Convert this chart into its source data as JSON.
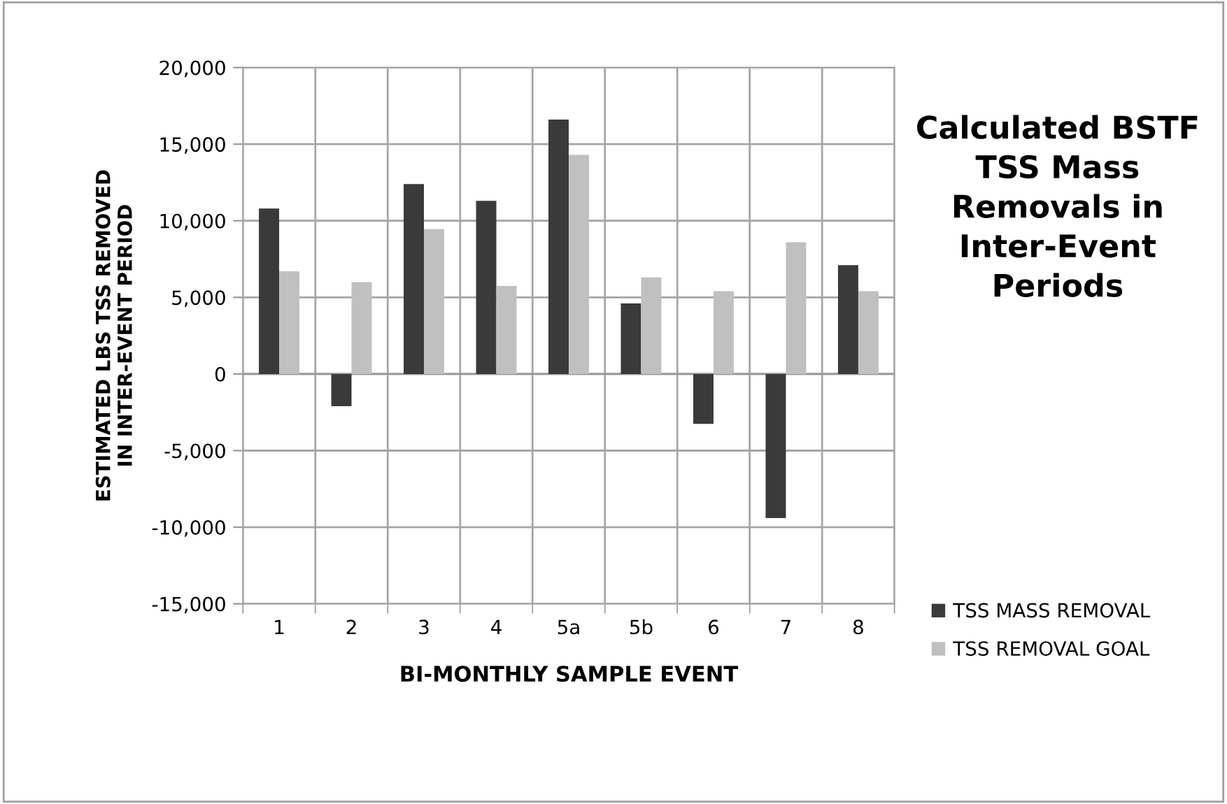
{
  "chart_data": {
    "type": "bar",
    "title": "Calculated BSTF TSS Mass Removals in Inter-Event Periods",
    "xlabel": "BI-MONTHLY SAMPLE EVENT",
    "ylabel": "ESTIMATED LBS TSS REMOVED\nIN INTER-EVENT PERIOD",
    "categories": [
      "1",
      "2",
      "3",
      "4",
      "5a",
      "5b",
      "6",
      "7",
      "8"
    ],
    "series": [
      {
        "name": "TSS MASS REMOVAL",
        "color": "#3a3a3a",
        "values": [
          10800,
          -2100,
          12400,
          11300,
          16600,
          4600,
          -3250,
          -9400,
          7100
        ]
      },
      {
        "name": "TSS REMOVAL GOAL",
        "color": "#c0c0c0",
        "values": [
          6700,
          6000,
          9450,
          5750,
          14300,
          6300,
          5400,
          8600,
          5400
        ]
      }
    ],
    "ylim": [
      -15000,
      20000
    ],
    "yticks": [
      {
        "value": -15000,
        "label": "-15,000"
      },
      {
        "value": -10000,
        "label": "-10,000"
      },
      {
        "value": -5000,
        "label": "-5,000"
      },
      0,
      {
        "value": 5000,
        "label": "5,000"
      },
      {
        "value": 10000,
        "label": "10,000"
      },
      {
        "value": 15000,
        "label": "15,000"
      },
      {
        "value": 20000,
        "label": "20,000"
      }
    ],
    "grid": true,
    "legend": "right"
  }
}
